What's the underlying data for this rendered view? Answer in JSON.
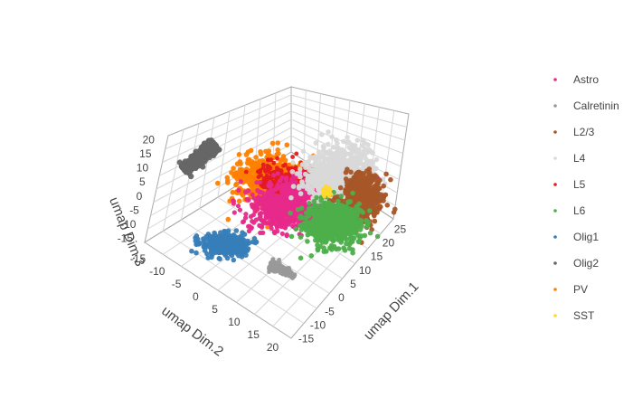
{
  "chart_data": {
    "type": "scatter",
    "dimensions": 3,
    "axes": {
      "x": {
        "label": "umap Dim.1",
        "ticks": [
          "-15",
          "-10",
          "-5",
          "0",
          "5",
          "10",
          "15",
          "20",
          "25"
        ]
      },
      "y": {
        "label": "umap Dim.2",
        "ticks": [
          "-15",
          "-10",
          "-5",
          "0",
          "5",
          "10",
          "15",
          "20"
        ]
      },
      "z": {
        "label": "umap Dim.3",
        "ticks": [
          "-15",
          "-10",
          "-5",
          "0",
          "5",
          "10",
          "15",
          "20"
        ]
      }
    },
    "legend_position": "right",
    "series": [
      {
        "name": "Astro",
        "color": "#e7298a"
      },
      {
        "name": "Calretinin",
        "color": "#999999"
      },
      {
        "name": "L2/3",
        "color": "#a65628"
      },
      {
        "name": "L4",
        "color": "#d9d9d9"
      },
      {
        "name": "L5",
        "color": "#e41a1c"
      },
      {
        "name": "L6",
        "color": "#4daf4a"
      },
      {
        "name": "Olig1",
        "color": "#377eb8"
      },
      {
        "name": "Olig2",
        "color": "#666666"
      },
      {
        "name": "PV",
        "color": "#ff7f00"
      },
      {
        "name": "SST",
        "color": "#ffd92f"
      }
    ],
    "clusters": [
      {
        "series": "Olig2",
        "points": 700
      },
      {
        "series": "Olig1",
        "points": 380
      },
      {
        "series": "Calretinin",
        "points": 220
      },
      {
        "series": "PV",
        "points": 650
      },
      {
        "series": "L5",
        "points": 260
      },
      {
        "series": "Astro",
        "points": 900
      },
      {
        "series": "L4",
        "points": 800
      },
      {
        "series": "L2/3",
        "points": 550
      },
      {
        "series": "L6",
        "points": 650
      },
      {
        "series": "SST",
        "points": 30
      }
    ]
  }
}
